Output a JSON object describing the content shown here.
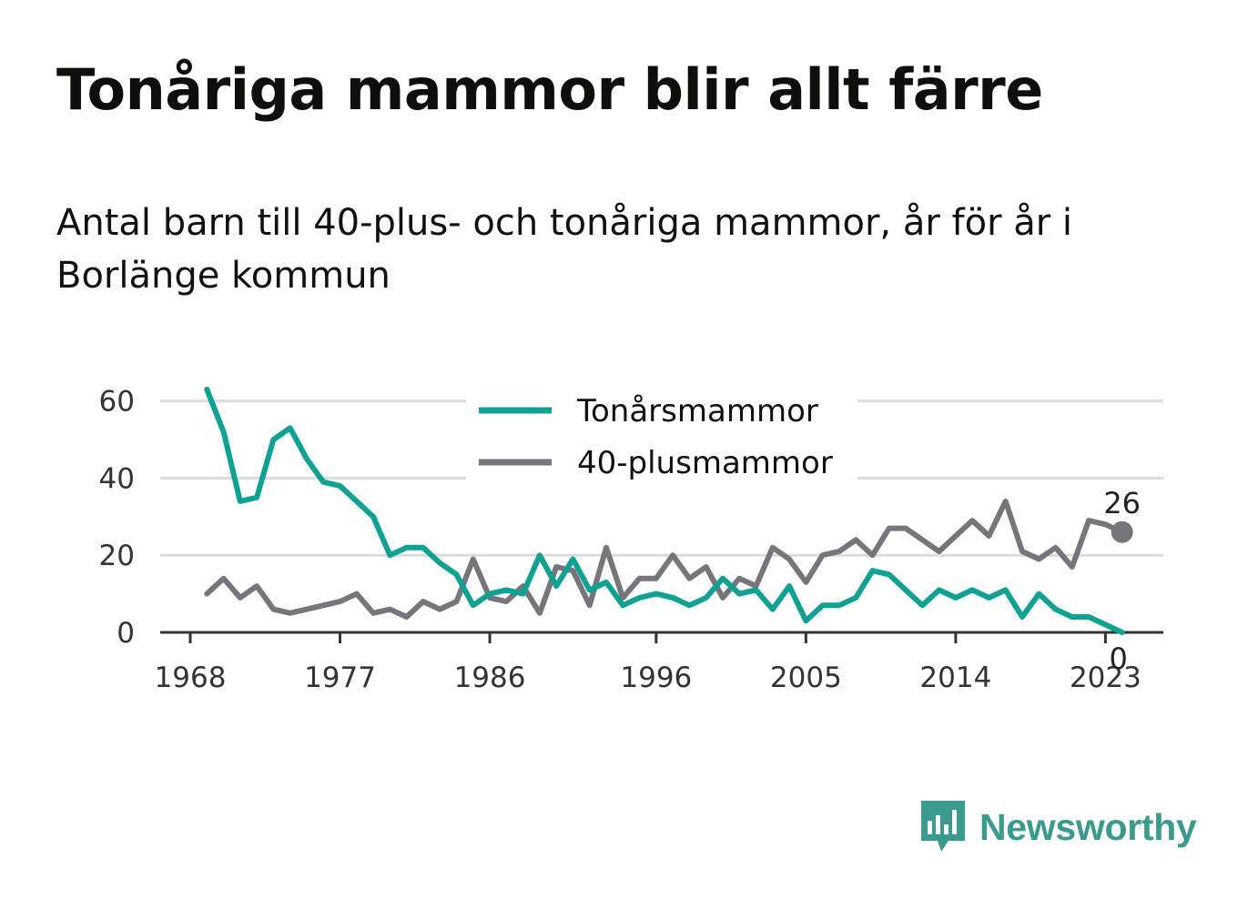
{
  "title": "Tonåriga mammor blir allt färre",
  "subtitle": "Antal barn till 40-plus- och tonåriga mammor, år för år i Borlänge kommun",
  "brand": {
    "name": "Newsworthy",
    "color": "#3a9a8d",
    "icon": "newsworthy-logo-icon"
  },
  "chart_data": {
    "type": "line",
    "x_ticks": [
      1968,
      1977,
      1986,
      1996,
      2005,
      2014,
      2023
    ],
    "y_ticks": [
      0,
      20,
      40,
      60
    ],
    "ylim": [
      0,
      63
    ],
    "xlim": [
      1967,
      2027
    ],
    "grid": true,
    "legend_position": "top-center",
    "x": [
      1969,
      1970,
      1971,
      1972,
      1973,
      1974,
      1975,
      1976,
      1977,
      1978,
      1979,
      1980,
      1981,
      1982,
      1983,
      1984,
      1985,
      1986,
      1987,
      1988,
      1989,
      1990,
      1991,
      1992,
      1993,
      1994,
      1995,
      1996,
      1997,
      1998,
      1999,
      2000,
      2001,
      2002,
      2003,
      2004,
      2005,
      2006,
      2007,
      2008,
      2009,
      2010,
      2011,
      2012,
      2013,
      2014,
      2015,
      2016,
      2017,
      2018,
      2019,
      2020,
      2021,
      2022,
      2023,
      2024
    ],
    "series": [
      {
        "name": "Tonårsmammor",
        "color": "#0fa191",
        "end_label": "0",
        "values": [
          63,
          52,
          34,
          35,
          50,
          53,
          45,
          39,
          38,
          34,
          30,
          20,
          22,
          22,
          18,
          15,
          7,
          10,
          11,
          10,
          20,
          12,
          19,
          11,
          13,
          7,
          9,
          10,
          9,
          7,
          9,
          14,
          10,
          11,
          6,
          12,
          3,
          7,
          7,
          9,
          16,
          15,
          11,
          7,
          11,
          9,
          11,
          9,
          11,
          4,
          10,
          6,
          4,
          4,
          2,
          0
        ]
      },
      {
        "name": "40-plusmammor",
        "color": "#76757c",
        "end_label": "26",
        "values": [
          10,
          14,
          9,
          12,
          6,
          5,
          6,
          7,
          8,
          10,
          5,
          6,
          4,
          8,
          6,
          8,
          19,
          9,
          8,
          12,
          5,
          17,
          16,
          7,
          22,
          9,
          14,
          14,
          20,
          14,
          17,
          9,
          14,
          12,
          22,
          19,
          13,
          20,
          21,
          24,
          20,
          27,
          27,
          24,
          21,
          25,
          29,
          25,
          34,
          21,
          19,
          22,
          17,
          29,
          28,
          26
        ]
      }
    ]
  }
}
